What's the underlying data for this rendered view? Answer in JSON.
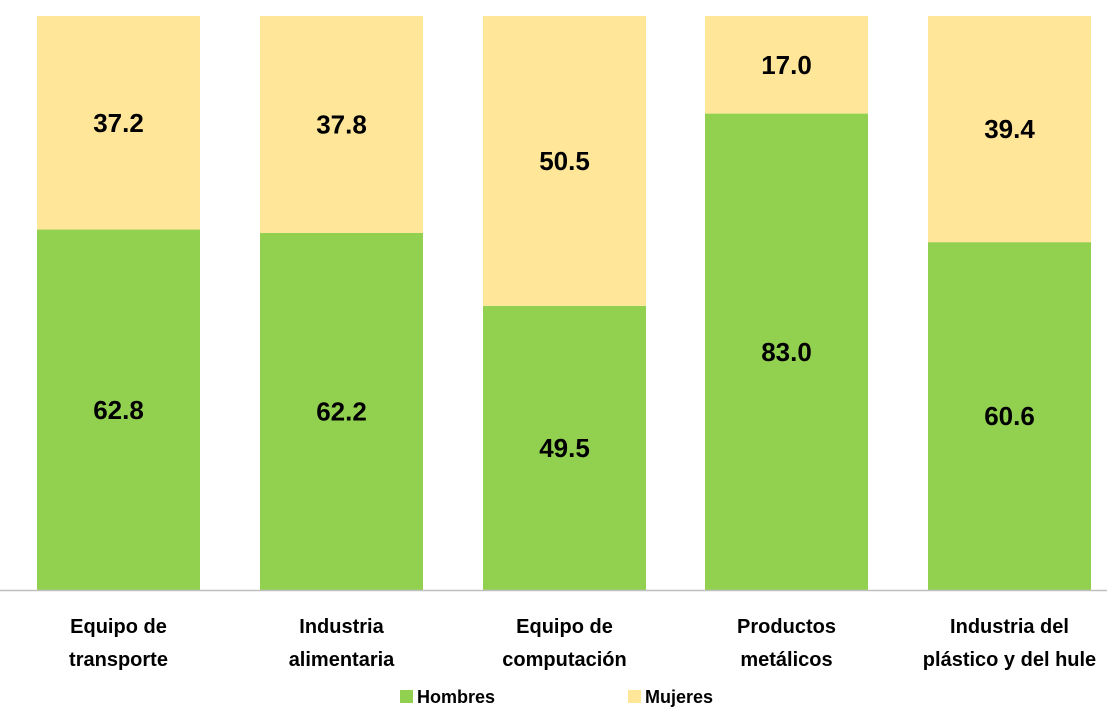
{
  "chart_data": {
    "type": "bar",
    "stacked": true,
    "categories": [
      [
        "Equipo de",
        "transporte"
      ],
      [
        "Industria",
        "alimentaria"
      ],
      [
        "Equipo de",
        "computación"
      ],
      [
        "Productos",
        "metálicos"
      ],
      [
        "Industria del",
        "plástico y del hule"
      ]
    ],
    "series": [
      {
        "name": "Hombres",
        "color": "#92d050",
        "values": [
          62.8,
          62.2,
          49.5,
          83.0,
          60.6
        ],
        "labels": [
          "62.8",
          "62.2",
          "49.5",
          "83.0",
          "60.6"
        ]
      },
      {
        "name": "Mujeres",
        "color": "#ffe699",
        "values": [
          37.2,
          37.8,
          50.5,
          17.0,
          39.4
        ],
        "labels": [
          "37.2",
          "37.8",
          "50.5",
          "17.0",
          "39.4"
        ]
      }
    ],
    "ylim": [
      0,
      100
    ],
    "grid": false,
    "legend_position": "bottom",
    "axis_color": "#bfbfbf"
  }
}
